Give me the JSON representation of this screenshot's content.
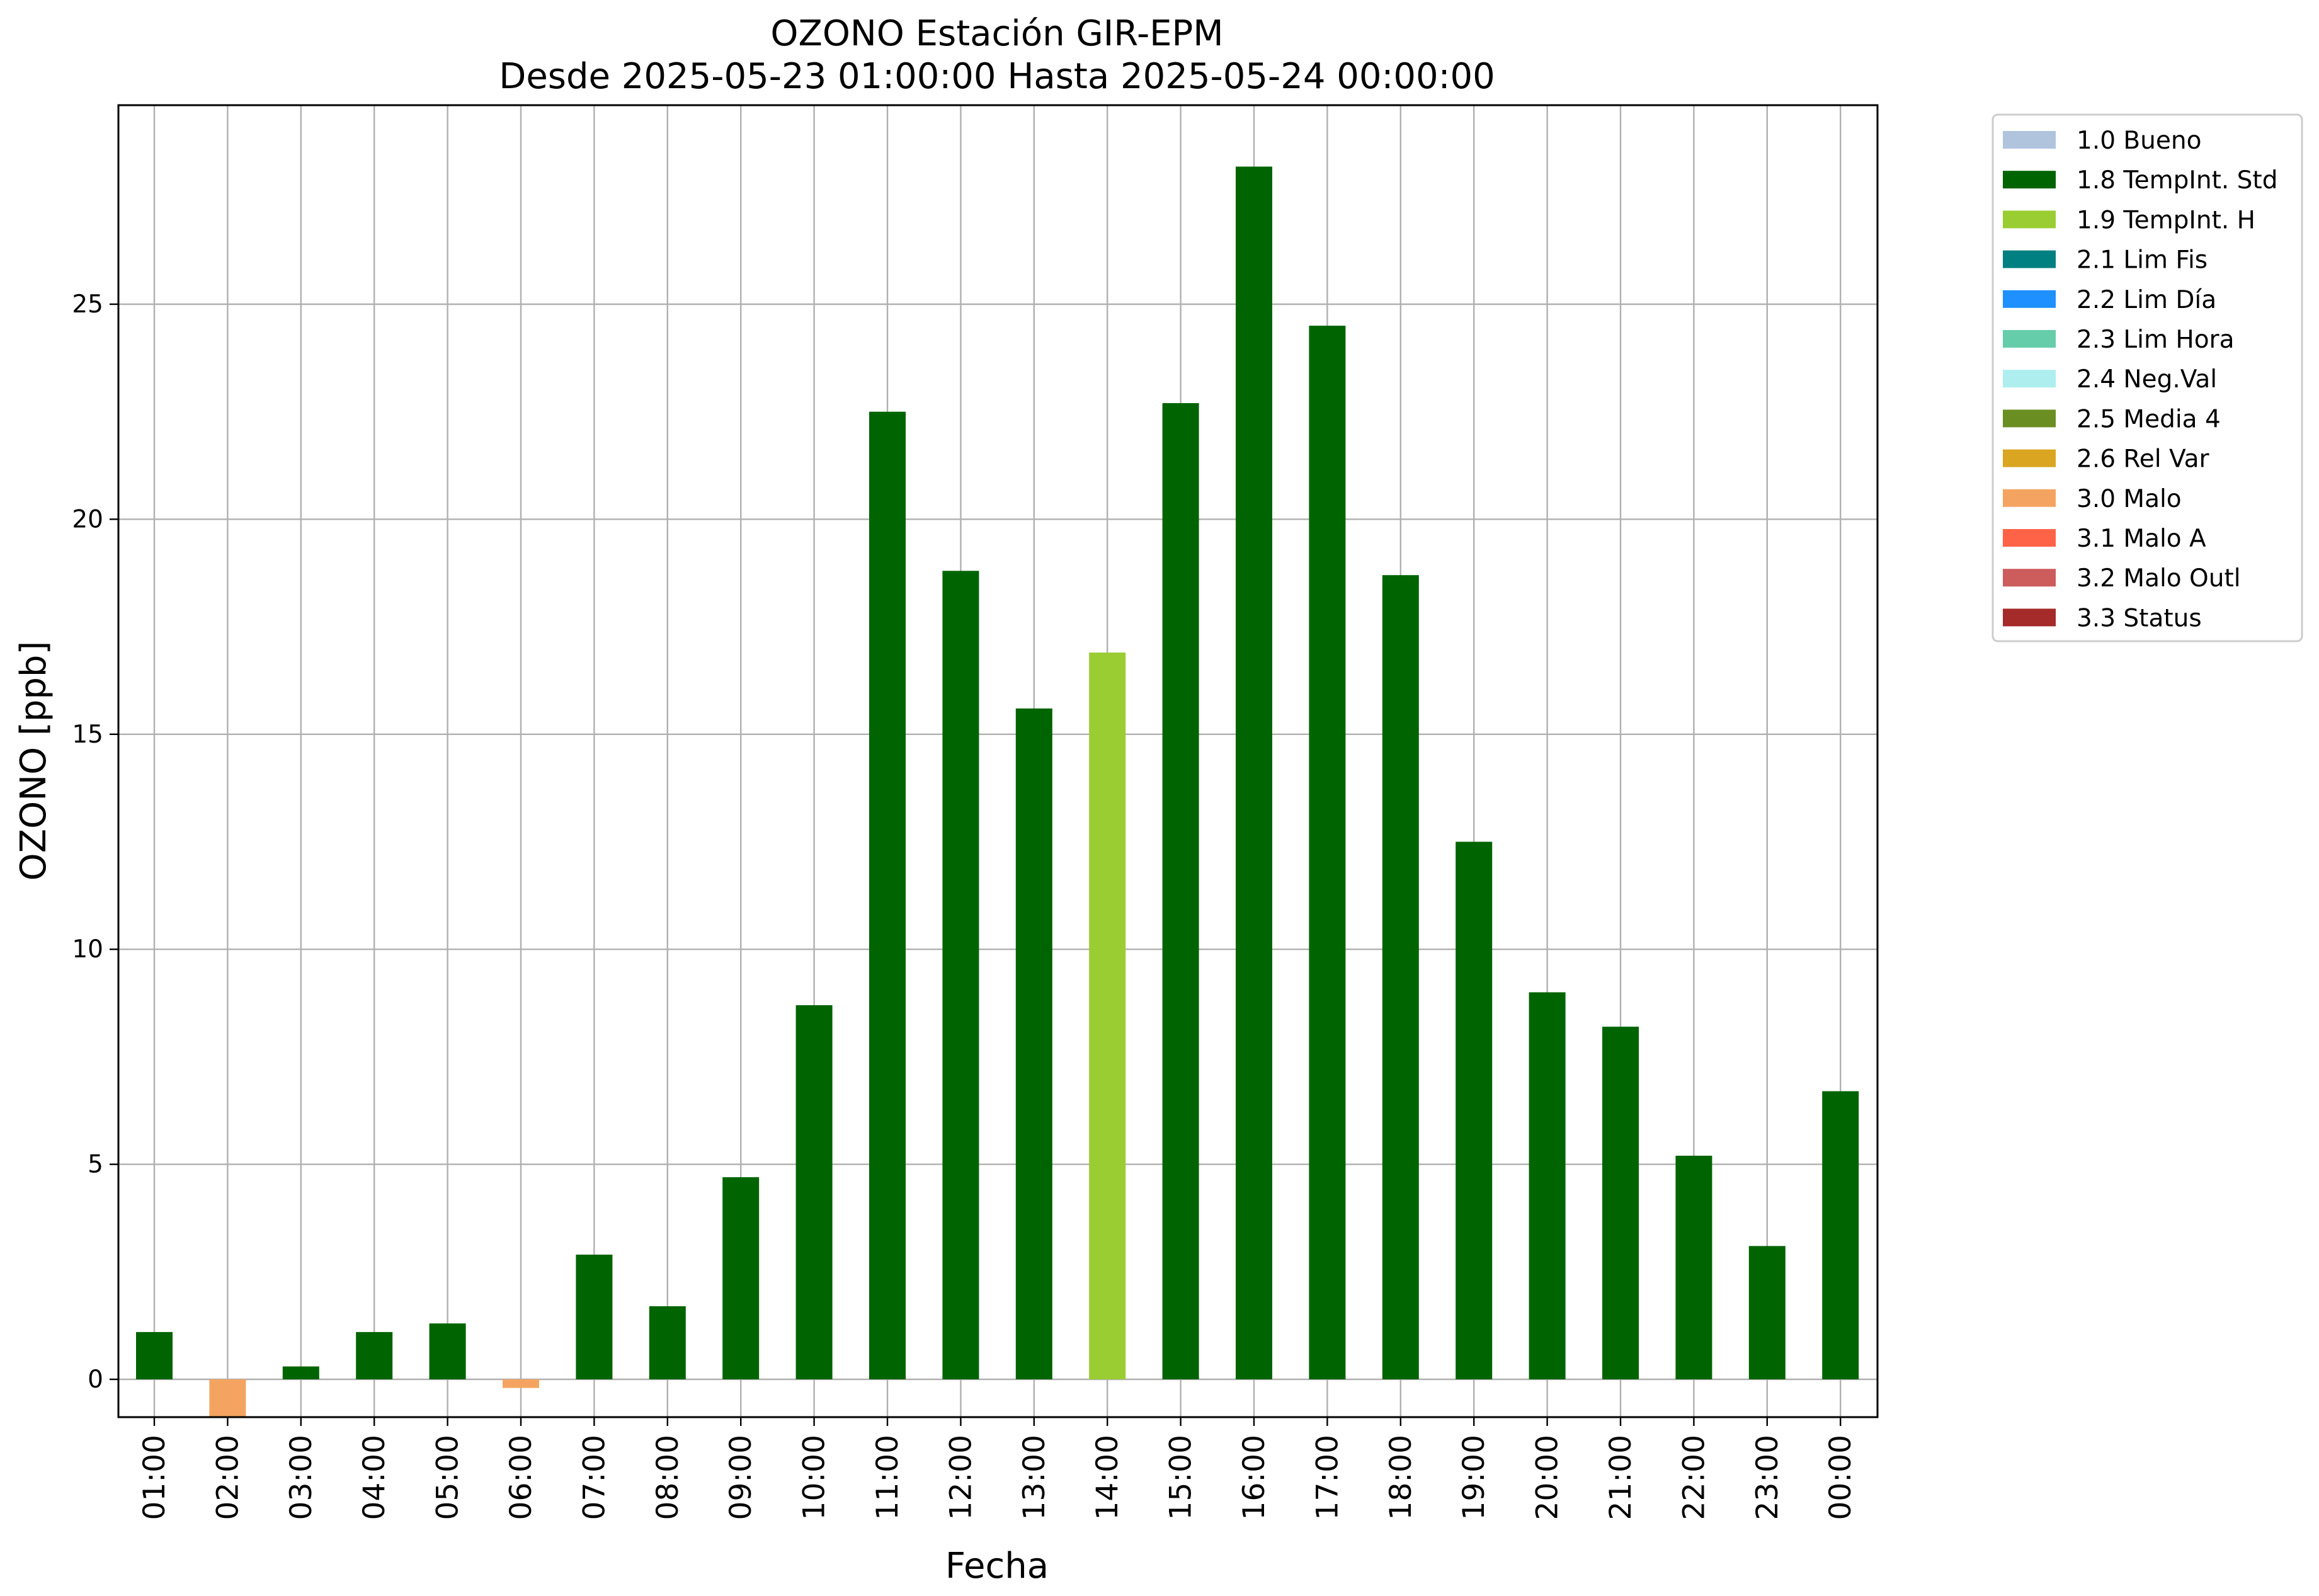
{
  "chart_data": {
    "type": "bar",
    "title": [
      "OZONO Estación GIR-EPM",
      "Desde 2025-05-23 01:00:00 Hasta 2025-05-24 00:00:00"
    ],
    "xlabel": "Fecha",
    "ylabel": "OZONO [ppb]",
    "ylim": [
      -0.9,
      29.5
    ],
    "yticks": [
      0,
      5,
      10,
      15,
      20,
      25
    ],
    "grid": true,
    "legend_position": "outside-top-right",
    "categories": [
      "01:00",
      "02:00",
      "03:00",
      "04:00",
      "05:00",
      "06:00",
      "07:00",
      "08:00",
      "09:00",
      "10:00",
      "11:00",
      "12:00",
      "13:00",
      "14:00",
      "15:00",
      "16:00",
      "17:00",
      "18:00",
      "19:00",
      "20:00",
      "21:00",
      "22:00",
      "23:00",
      "00:00"
    ],
    "values": [
      1.1,
      -0.9,
      0.3,
      1.1,
      1.3,
      -0.2,
      2.9,
      1.7,
      4.7,
      8.7,
      22.5,
      18.8,
      15.6,
      16.9,
      22.7,
      28.2,
      24.5,
      18.7,
      12.5,
      9.0,
      8.2,
      5.2,
      3.1,
      6.7
    ],
    "flags": [
      "1.8 TempInt. Std",
      "3.0 Malo",
      "1.8 TempInt. Std",
      "1.8 TempInt. Std",
      "1.8 TempInt. Std",
      "3.0 Malo",
      "1.8 TempInt. Std",
      "1.8 TempInt. Std",
      "1.8 TempInt. Std",
      "1.8 TempInt. Std",
      "1.8 TempInt. Std",
      "1.8 TempInt. Std",
      "1.8 TempInt. Std",
      "1.9 TempInt. H",
      "1.8 TempInt. Std",
      "1.8 TempInt. Std",
      "1.8 TempInt. Std",
      "1.8 TempInt. Std",
      "1.8 TempInt. Std",
      "1.8 TempInt. Std",
      "1.8 TempInt. Std",
      "1.8 TempInt. Std",
      "1.8 TempInt. Std",
      "1.8 TempInt. Std"
    ],
    "legend": [
      {
        "label": "1.0 Bueno",
        "color": "#b0c4de"
      },
      {
        "label": "1.8 TempInt. Std",
        "color": "#006400"
      },
      {
        "label": "1.9 TempInt. H",
        "color": "#9acd32"
      },
      {
        "label": "2.1 Lim Fis",
        "color": "#008080"
      },
      {
        "label": "2.2 Lim Día",
        "color": "#1e90ff"
      },
      {
        "label": "2.3 Lim Hora",
        "color": "#66cdaa"
      },
      {
        "label": "2.4 Neg.Val",
        "color": "#afeeee"
      },
      {
        "label": "2.5 Media 4",
        "color": "#6b8e23"
      },
      {
        "label": "2.6 Rel Var",
        "color": "#daa520"
      },
      {
        "label": "3.0 Malo",
        "color": "#f4a460"
      },
      {
        "label": "3.1 Malo A",
        "color": "#ff6347"
      },
      {
        "label": "3.2 Malo Outl",
        "color": "#cd5c5c"
      },
      {
        "label": "3.3 Status",
        "color": "#a52a2a"
      }
    ]
  }
}
